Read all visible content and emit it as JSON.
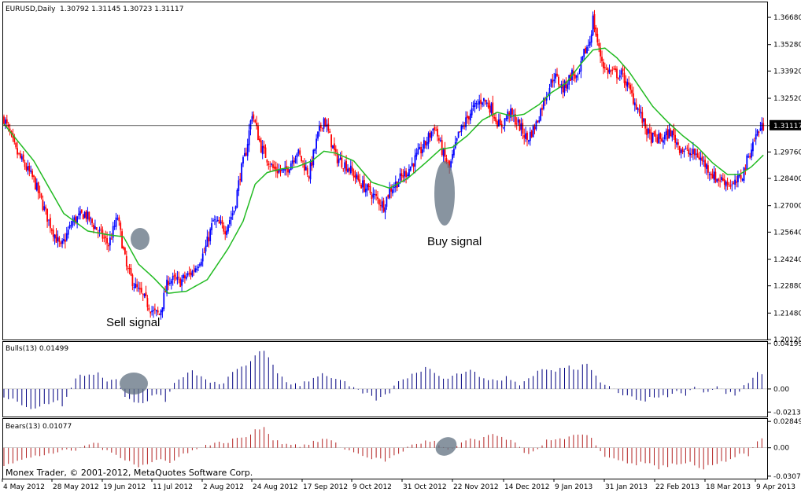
{
  "header": {
    "symbol": "EURUSD,Daily",
    "ohlc": "1.30792 1.31145 1.30723 1.31117"
  },
  "footer": {
    "copyright": "Monex Trader, © 2001-2012, MetaQuotes Software Corp."
  },
  "colors": {
    "bull": "#0000ff",
    "bear": "#ff0000",
    "ma": "#22bb22",
    "bulls_hist": "#000080",
    "bears_hist": "#b22222",
    "marker": "#607080"
  },
  "chart_data": [
    {
      "type": "candlestick",
      "title": "EURUSD,Daily",
      "ylim": [
        1.2012,
        1.3745
      ],
      "y_ticks": [
        "1.36680",
        "1.35280",
        "1.33920",
        "1.32520",
        "1.31117",
        "1.29760",
        "1.28400",
        "1.27000",
        "1.25640",
        "1.24240",
        "1.22880",
        "1.21480",
        "1.20120"
      ],
      "y_tick_values": [
        1.3668,
        1.3528,
        1.3392,
        1.3252,
        1.31117,
        1.2976,
        1.284,
        1.27,
        1.2564,
        1.2424,
        1.2288,
        1.2148,
        1.2012
      ],
      "current_price": "1.31117",
      "x_ticks": [
        "4 May 2012",
        "28 May 2012",
        "19 Jun 2012",
        "11 Jul 2012",
        "2 Aug 2012",
        "24 Aug 2012",
        "17 Sep 2012",
        "9 Oct 2012",
        "31 Oct 2012",
        "22 Nov 2012",
        "14 Dec 2012",
        "9 Jan 2013",
        "31 Jan 2013",
        "22 Feb 2013",
        "18 Mar 2013",
        "9 Apr 2013"
      ],
      "close_path": [
        [
          0,
          1.315
        ],
        [
          8,
          1.298
        ],
        [
          20,
          1.283
        ],
        [
          30,
          1.262
        ],
        [
          38,
          1.248
        ],
        [
          46,
          1.262
        ],
        [
          54,
          1.266
        ],
        [
          62,
          1.258
        ],
        [
          70,
          1.25
        ],
        [
          76,
          1.264
        ],
        [
          82,
          1.238
        ],
        [
          88,
          1.228
        ],
        [
          94,
          1.222
        ],
        [
          100,
          1.215
        ],
        [
          104,
          1.214
        ],
        [
          110,
          1.232
        ],
        [
          118,
          1.231
        ],
        [
          126,
          1.236
        ],
        [
          134,
          1.246
        ],
        [
          140,
          1.262
        ],
        [
          148,
          1.258
        ],
        [
          154,
          1.268
        ],
        [
          158,
          1.286
        ],
        [
          162,
          1.298
        ],
        [
          166,
          1.318
        ],
        [
          172,
          1.3
        ],
        [
          180,
          1.289
        ],
        [
          188,
          1.287
        ],
        [
          196,
          1.298
        ],
        [
          204,
          1.286
        ],
        [
          210,
          1.306
        ],
        [
          214,
          1.315
        ],
        [
          222,
          1.295
        ],
        [
          230,
          1.29
        ],
        [
          238,
          1.282
        ],
        [
          246,
          1.276
        ],
        [
          254,
          1.27
        ],
        [
          258,
          1.278
        ],
        [
          264,
          1.283
        ],
        [
          270,
          1.288
        ],
        [
          276,
          1.295
        ],
        [
          282,
          1.302
        ],
        [
          288,
          1.311
        ],
        [
          294,
          1.296
        ],
        [
          298,
          1.289
        ],
        [
          304,
          1.306
        ],
        [
          312,
          1.318
        ],
        [
          320,
          1.325
        ],
        [
          326,
          1.32
        ],
        [
          332,
          1.31
        ],
        [
          338,
          1.318
        ],
        [
          344,
          1.312
        ],
        [
          350,
          1.304
        ],
        [
          356,
          1.312
        ],
        [
          362,
          1.326
        ],
        [
          368,
          1.337
        ],
        [
          374,
          1.33
        ],
        [
          380,
          1.338
        ],
        [
          384,
          1.335
        ],
        [
          388,
          1.348
        ],
        [
          392,
          1.355
        ],
        [
          394,
          1.366
        ],
        [
          398,
          1.35
        ],
        [
          402,
          1.34
        ],
        [
          408,
          1.338
        ],
        [
          414,
          1.337
        ],
        [
          418,
          1.33
        ],
        [
          424,
          1.32
        ],
        [
          428,
          1.312
        ],
        [
          432,
          1.305
        ],
        [
          440,
          1.304
        ],
        [
          446,
          1.308
        ],
        [
          452,
          1.3
        ],
        [
          458,
          1.297
        ],
        [
          464,
          1.296
        ],
        [
          470,
          1.29
        ],
        [
          476,
          1.284
        ],
        [
          482,
          1.283
        ],
        [
          488,
          1.28
        ],
        [
          494,
          1.286
        ],
        [
          500,
          1.3
        ],
        [
          504,
          1.308
        ],
        [
          508,
          1.311
        ]
      ],
      "ma_path": [
        [
          0,
          1.312
        ],
        [
          20,
          1.293
        ],
        [
          40,
          1.266
        ],
        [
          56,
          1.257
        ],
        [
          70,
          1.255
        ],
        [
          80,
          1.254
        ],
        [
          90,
          1.24
        ],
        [
          100,
          1.233
        ],
        [
          110,
          1.225
        ],
        [
          122,
          1.226
        ],
        [
          136,
          1.232
        ],
        [
          150,
          1.248
        ],
        [
          160,
          1.262
        ],
        [
          168,
          1.281
        ],
        [
          176,
          1.287
        ],
        [
          186,
          1.289
        ],
        [
          196,
          1.29
        ],
        [
          206,
          1.293
        ],
        [
          214,
          1.298
        ],
        [
          222,
          1.297
        ],
        [
          234,
          1.293
        ],
        [
          246,
          1.282
        ],
        [
          258,
          1.279
        ],
        [
          270,
          1.284
        ],
        [
          282,
          1.292
        ],
        [
          292,
          1.299
        ],
        [
          300,
          1.3
        ],
        [
          310,
          1.306
        ],
        [
          320,
          1.314
        ],
        [
          330,
          1.318
        ],
        [
          340,
          1.316
        ],
        [
          348,
          1.317
        ],
        [
          358,
          1.322
        ],
        [
          366,
          1.328
        ],
        [
          376,
          1.333
        ],
        [
          386,
          1.343
        ],
        [
          394,
          1.35
        ],
        [
          402,
          1.351
        ],
        [
          410,
          1.346
        ],
        [
          418,
          1.339
        ],
        [
          426,
          1.33
        ],
        [
          434,
          1.321
        ],
        [
          444,
          1.313
        ],
        [
          454,
          1.306
        ],
        [
          464,
          1.3
        ],
        [
          474,
          1.292
        ],
        [
          484,
          1.286
        ],
        [
          492,
          1.286
        ],
        [
          500,
          1.29
        ],
        [
          508,
          1.296
        ]
      ],
      "annotations": [
        "Sell signal",
        "Buy signal"
      ]
    },
    {
      "type": "histogram",
      "title": "Bulls(13) 0.01499",
      "ylim": [
        -0.0255,
        0.0435
      ],
      "y_ticks": [
        "0.04199",
        "0.00",
        "-0.02133"
      ],
      "y_tick_values": [
        0.04199,
        0.0,
        -0.02133
      ],
      "values_path": [
        [
          0,
          -0.006
        ],
        [
          10,
          -0.012
        ],
        [
          18,
          -0.018
        ],
        [
          26,
          -0.016
        ],
        [
          34,
          -0.01
        ],
        [
          40,
          -0.016
        ],
        [
          46,
          0.006
        ],
        [
          52,
          0.014
        ],
        [
          58,
          0.012
        ],
        [
          62,
          0.018
        ],
        [
          66,
          0.01
        ],
        [
          70,
          0.004
        ],
        [
          76,
          0.012
        ],
        [
          80,
          -0.006
        ],
        [
          86,
          -0.012
        ],
        [
          92,
          -0.014
        ],
        [
          98,
          -0.008
        ],
        [
          104,
          -0.004
        ],
        [
          108,
          -0.012
        ],
        [
          114,
          0.004
        ],
        [
          120,
          0.012
        ],
        [
          126,
          0.016
        ],
        [
          132,
          0.012
        ],
        [
          136,
          0.006
        ],
        [
          144,
          0.004
        ],
        [
          150,
          0.01
        ],
        [
          156,
          0.018
        ],
        [
          162,
          0.022
        ],
        [
          166,
          0.028
        ],
        [
          172,
          0.038
        ],
        [
          176,
          0.03
        ],
        [
          182,
          0.016
        ],
        [
          190,
          0.006
        ],
        [
          198,
          0.004
        ],
        [
          206,
          0.01
        ],
        [
          212,
          0.014
        ],
        [
          218,
          0.012
        ],
        [
          224,
          0.008
        ],
        [
          230,
          0.004
        ],
        [
          236,
          -0.002
        ],
        [
          244,
          -0.006
        ],
        [
          250,
          -0.01
        ],
        [
          256,
          -0.006
        ],
        [
          262,
          0.004
        ],
        [
          268,
          0.01
        ],
        [
          276,
          0.016
        ],
        [
          284,
          0.02
        ],
        [
          290,
          0.014
        ],
        [
          296,
          0.01
        ],
        [
          304,
          0.014
        ],
        [
          310,
          0.018
        ],
        [
          318,
          0.012
        ],
        [
          324,
          0.01
        ],
        [
          330,
          0.006
        ],
        [
          336,
          0.012
        ],
        [
          344,
          0.004
        ],
        [
          350,
          0.008
        ],
        [
          356,
          0.016
        ],
        [
          362,
          0.018
        ],
        [
          370,
          0.016
        ],
        [
          376,
          0.022
        ],
        [
          382,
          0.018
        ],
        [
          390,
          0.024
        ],
        [
          396,
          0.014
        ],
        [
          400,
          0.006
        ],
        [
          406,
          0.002
        ],
        [
          412,
          -0.004
        ],
        [
          420,
          -0.008
        ],
        [
          428,
          -0.012
        ],
        [
          436,
          -0.006
        ],
        [
          444,
          -0.008
        ],
        [
          450,
          -0.002
        ],
        [
          456,
          -0.006
        ],
        [
          462,
          0.004
        ],
        [
          468,
          -0.004
        ],
        [
          476,
          0.002
        ],
        [
          484,
          -0.004
        ],
        [
          490,
          -0.006
        ],
        [
          496,
          0.004
        ],
        [
          500,
          0.01
        ],
        [
          504,
          0.016
        ],
        [
          508,
          0.015
        ]
      ],
      "zero_line": true
    },
    {
      "type": "histogram",
      "title": "Bears(13) 0.01077",
      "ylim": [
        -0.0334,
        0.0312
      ],
      "y_ticks": [
        "0.02849",
        "0.00",
        "-0.03072"
      ],
      "y_tick_values": [
        0.02849,
        0.0,
        -0.03072
      ],
      "values_path": [
        [
          0,
          -0.018
        ],
        [
          10,
          -0.014
        ],
        [
          20,
          -0.01
        ],
        [
          30,
          -0.006
        ],
        [
          40,
          -0.004
        ],
        [
          50,
          -0.002
        ],
        [
          56,
          0.004
        ],
        [
          62,
          0.006
        ],
        [
          68,
          -0.004
        ],
        [
          76,
          -0.008
        ],
        [
          84,
          -0.014
        ],
        [
          90,
          -0.02
        ],
        [
          96,
          -0.018
        ],
        [
          104,
          -0.012
        ],
        [
          110,
          -0.016
        ],
        [
          118,
          -0.008
        ],
        [
          126,
          -0.004
        ],
        [
          132,
          0.002
        ],
        [
          140,
          0.004
        ],
        [
          148,
          0.006
        ],
        [
          156,
          0.01
        ],
        [
          162,
          0.012
        ],
        [
          168,
          0.018
        ],
        [
          174,
          0.024
        ],
        [
          178,
          0.012
        ],
        [
          184,
          0.006
        ],
        [
          192,
          0.004
        ],
        [
          200,
          0.002
        ],
        [
          208,
          0.006
        ],
        [
          214,
          0.01
        ],
        [
          218,
          0.008
        ],
        [
          224,
          0.002
        ],
        [
          232,
          -0.004
        ],
        [
          240,
          -0.008
        ],
        [
          248,
          -0.012
        ],
        [
          256,
          -0.014
        ],
        [
          262,
          -0.008
        ],
        [
          268,
          -0.002
        ],
        [
          274,
          0.004
        ],
        [
          280,
          0.006
        ],
        [
          286,
          0.008
        ],
        [
          292,
          0.002
        ],
        [
          298,
          -0.004
        ],
        [
          306,
          0.004
        ],
        [
          312,
          0.01
        ],
        [
          318,
          0.008
        ],
        [
          324,
          0.014
        ],
        [
          330,
          0.012
        ],
        [
          336,
          0.01
        ],
        [
          342,
          0.004
        ],
        [
          348,
          -0.006
        ],
        [
          354,
          -0.004
        ],
        [
          360,
          0.004
        ],
        [
          366,
          0.01
        ],
        [
          374,
          0.008
        ],
        [
          382,
          0.014
        ],
        [
          390,
          0.012
        ],
        [
          394,
          0.008
        ],
        [
          400,
          -0.006
        ],
        [
          406,
          -0.012
        ],
        [
          414,
          -0.014
        ],
        [
          422,
          -0.018
        ],
        [
          430,
          -0.016
        ],
        [
          438,
          -0.022
        ],
        [
          446,
          -0.018
        ],
        [
          452,
          -0.02
        ],
        [
          458,
          -0.016
        ],
        [
          466,
          -0.024
        ],
        [
          472,
          -0.02
        ],
        [
          478,
          -0.016
        ],
        [
          486,
          -0.012
        ],
        [
          492,
          -0.006
        ],
        [
          498,
          -0.008
        ],
        [
          502,
          0.004
        ],
        [
          506,
          0.01
        ],
        [
          508,
          0.011
        ]
      ],
      "zero_line": true
    }
  ]
}
